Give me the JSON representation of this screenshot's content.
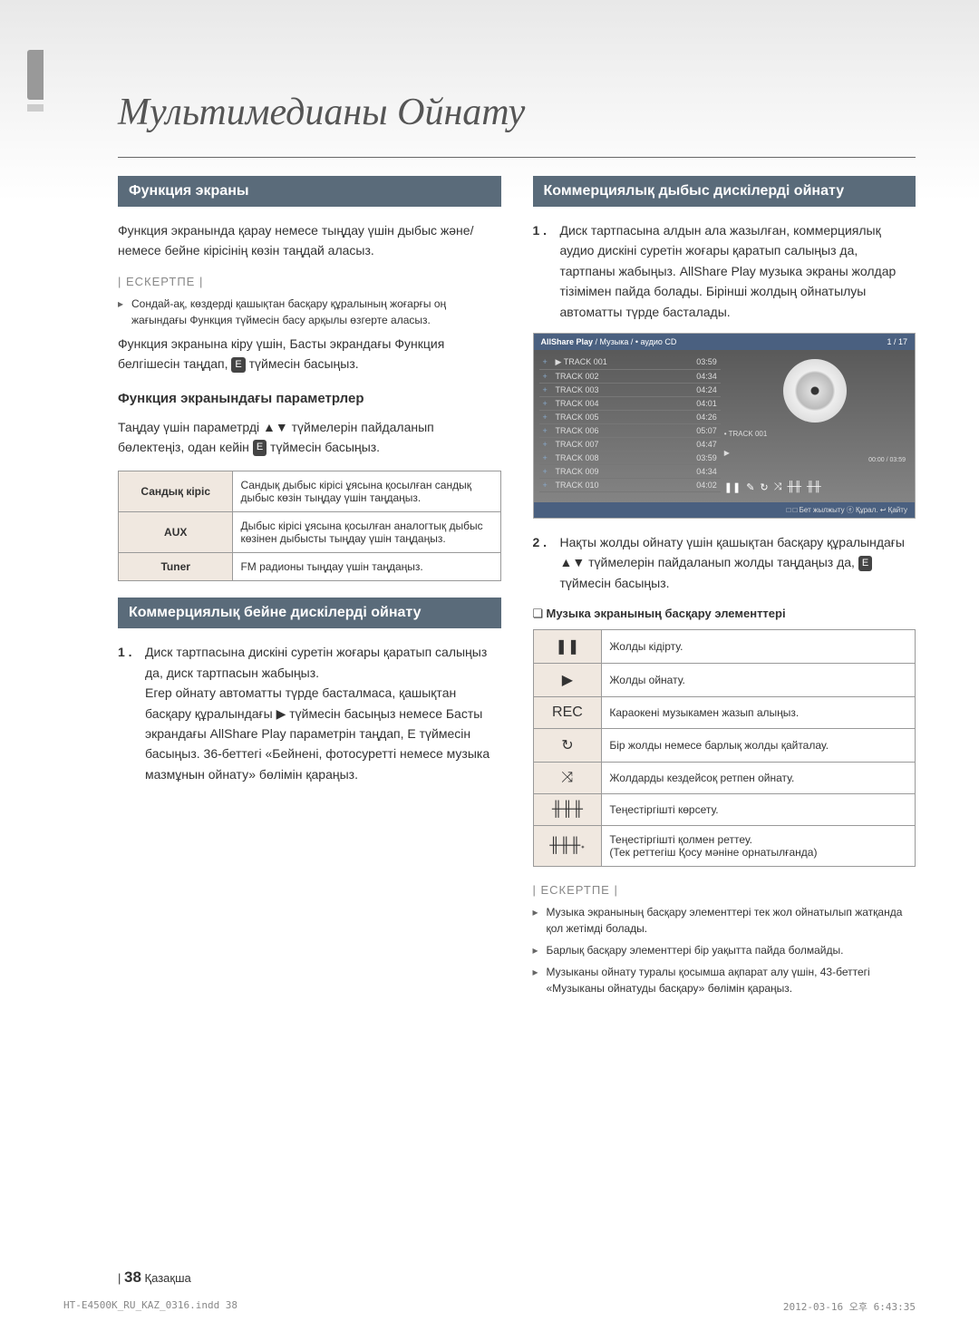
{
  "title": "Мультимедианы Ойнату",
  "left": {
    "s1": {
      "hdr": "Функция экраны",
      "p1": "Функция экранында қарау немесе тыңдау үшін дыбыс жəне/немесе бейне кірісінің көзін таңдай аласыз.",
      "noteLabel": "| ЕСКЕРТПЕ |",
      "note1": "Сондай-ақ, көздерді қашықтан басқару құралының жоғарғы оң жағындағы Функция түймесін басу арқылы өзгерте аласыз.",
      "p2a": "Функция экранына кіру үшін, Басты экрандағы Функция белгішесін таңдап, ",
      "p2b": " түймесін басыңыз.",
      "sub": "Функция экранындағы параметрлер",
      "p3a": "Таңдау үшін параметрді ▲▼ түймелерін пайдаланып бөлектеңіз, одан кейін ",
      "p3b": " түймесін басыңыз.",
      "t": {
        "r1h": "Сандық кіріс",
        "r1d": "Сандық дыбыс кірісі ұясына қосылған сандық дыбыс көзін тыңдау үшін таңдаңыз.",
        "r2h": "AUX",
        "r2d": "Дыбыс кірісі ұясына қосылған аналогтық дыбыс көзінен дыбысты тыңдау үшін таңдаңыз.",
        "r3h": "Tuner",
        "r3d": "FM радионы тыңдау үшін таңдаңыз."
      }
    },
    "s2": {
      "hdr": "Коммерциялық бейне дискілерді ойнату",
      "n1": "1 .",
      "p1": "Диск тартпасына дискіні суретін жоғары қаратып салыңыз да, диск тартпасын жабыңыз.\nЕгер ойнату автоматты түрде басталмаса, қашықтан басқару құралындағы ▶ түймесін басыңыз немесе Басты экрандағы AllShare Play параметрін таңдап, E түймесін басыңыз. 36-беттегі «Бейнені, фотосуретті немесе музыка мазмұнын ойнату» бөлімін қараңыз."
    }
  },
  "right": {
    "s1": {
      "hdr": "Коммерциялық дыбыс дискілерді ойнату",
      "n1": "1 .",
      "p1": "Диск тартпасына алдын ала жазылған, коммерциялық аудио дискіні суретін жоғары қаратып салыңыз да, тартпаны жабыңыз. AllShare Play музыка экраны жолдар тізімімен пайда болады. Бірінші жолдың ойнатылуы автоматты түрде басталады.",
      "n2": "2 .",
      "p2a": "Нақты жолды ойнату үшін қашықтан басқару құралындағы ▲▼ түймелерін пайдаланып жолды таңдаңыз да, ",
      "p2b": " түймесін басыңыз.",
      "sub": "Музыка экранының басқару элементтері",
      "ctrl": [
        {
          "i": "❚❚",
          "d": "Жолды кідірту."
        },
        {
          "i": "▶",
          "d": "Жолды ойнату."
        },
        {
          "i": "REC",
          "d": "Караокені музыкамен жазып алыңыз."
        },
        {
          "i": "↻",
          "d": "Бір жолды немесе барлық жолды қайталау."
        },
        {
          "i": "⤨",
          "d": "Жолдарды кездейсоқ ретпен ойнату."
        },
        {
          "i": "╫╫╫",
          "d": "Теңестіргішті көрсету."
        },
        {
          "i": "╫╫╫˖",
          "d": "Теңестіргішті қолмен реттеу.\n(Тек реттегіш Қосу мəніне орнатылғанда)"
        }
      ],
      "noteLabel": "| ЕСКЕРТПЕ |",
      "notes": [
        "Музыка экранының басқару элементтері тек жол ойнатылып жатқанда қол жетімді болады.",
        "Барлық басқару элементтері бір уақытта пайда болмайды.",
        "Музыканы ойнату туралы қосымша ақпарат алу үшін, 43-беттегі «Музыканы ойнатуды басқару» бөлімін қараңыз."
      ]
    }
  },
  "allshare": {
    "title": "AllShare Play",
    "bc": " / Музыка / • аудио CD",
    "count": "1 / 17",
    "tracks": [
      [
        "+",
        "▶ TRACK 001",
        "03:59"
      ],
      [
        "+",
        "TRACK 002",
        "04:34"
      ],
      [
        "+",
        "TRACK 003",
        "04:24"
      ],
      [
        "+",
        "TRACK 004",
        "04:01"
      ],
      [
        "+",
        "TRACK 005",
        "04:26"
      ],
      [
        "+",
        "TRACK 006",
        "05:07"
      ],
      [
        "+",
        "TRACK 007",
        "04:47"
      ],
      [
        "+",
        "TRACK 008",
        "03:59"
      ],
      [
        "+",
        "TRACK 009",
        "04:34"
      ],
      [
        "+",
        "TRACK 010",
        "04:02"
      ]
    ],
    "now": "• TRACK 001",
    "time": "00:00 / 03:59",
    "foot": "□ □ Бет жылжыту  ⓔ Құрал.  ↩ Қайту"
  },
  "footer": {
    "page": "38",
    "lang": "Қазақша"
  },
  "imprint": {
    "l": "HT-E4500K_RU_KAZ_0316.indd   38",
    "r": "2012-03-16   오후 6:43:35"
  }
}
